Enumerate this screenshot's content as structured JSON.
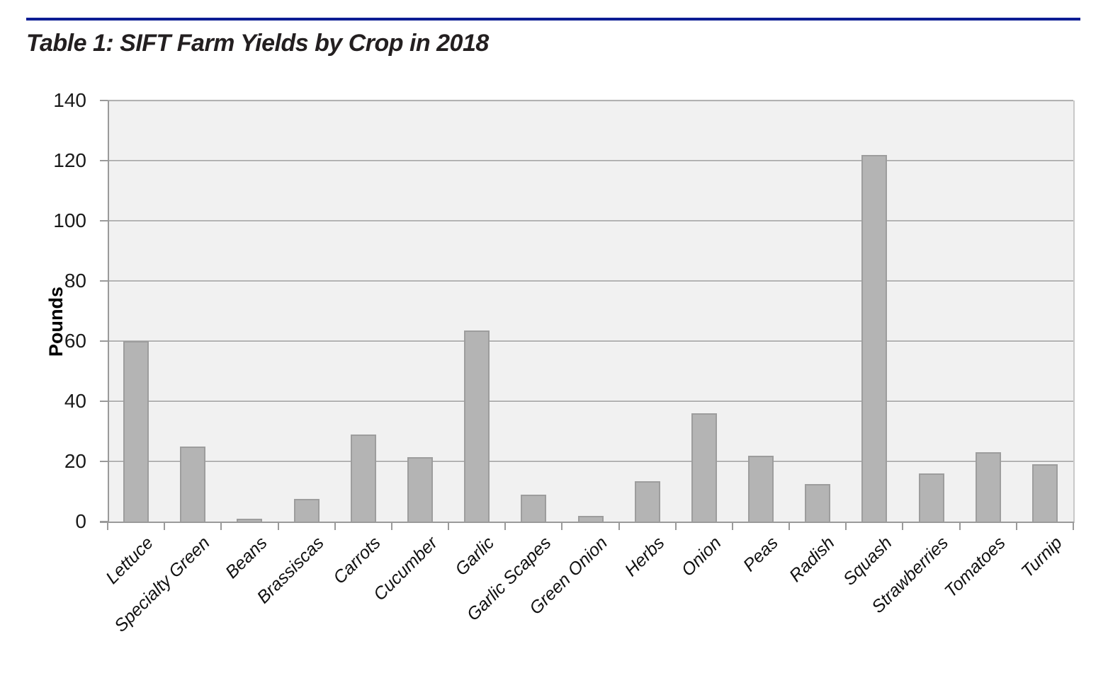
{
  "page": {
    "accent_color": "#0d1d94"
  },
  "chart_data": {
    "type": "bar",
    "title": "Table 1: SIFT Farm Yields by Crop in 2018",
    "categories": [
      "Lettuce",
      "Specialty Green",
      "Beans",
      "Brassiscas",
      "Carrots",
      "Cucumber",
      "Garlic",
      "Garlic Scapes",
      "Green Onion",
      "Herbs",
      "Onion",
      "Peas",
      "Radish",
      "Squash",
      "Strawberries",
      "Tomatoes",
      "Turnip"
    ],
    "values": [
      60,
      25,
      1,
      7.5,
      29,
      21.5,
      63.5,
      9,
      2,
      13.5,
      36,
      22,
      12.5,
      122,
      16,
      23,
      19
    ],
    "xlabel": "",
    "ylabel": "Pounds",
    "ylim": [
      0,
      140
    ],
    "ytick_step": 20,
    "grid": true,
    "legend_position": "none",
    "bar_color": "#b4b4b4",
    "bar_border_color": "#9d9d9d",
    "plot_bg": "#f1f1f1",
    "gridline_color": "#b2b2b2",
    "axis_color": "#9a9a9a"
  }
}
